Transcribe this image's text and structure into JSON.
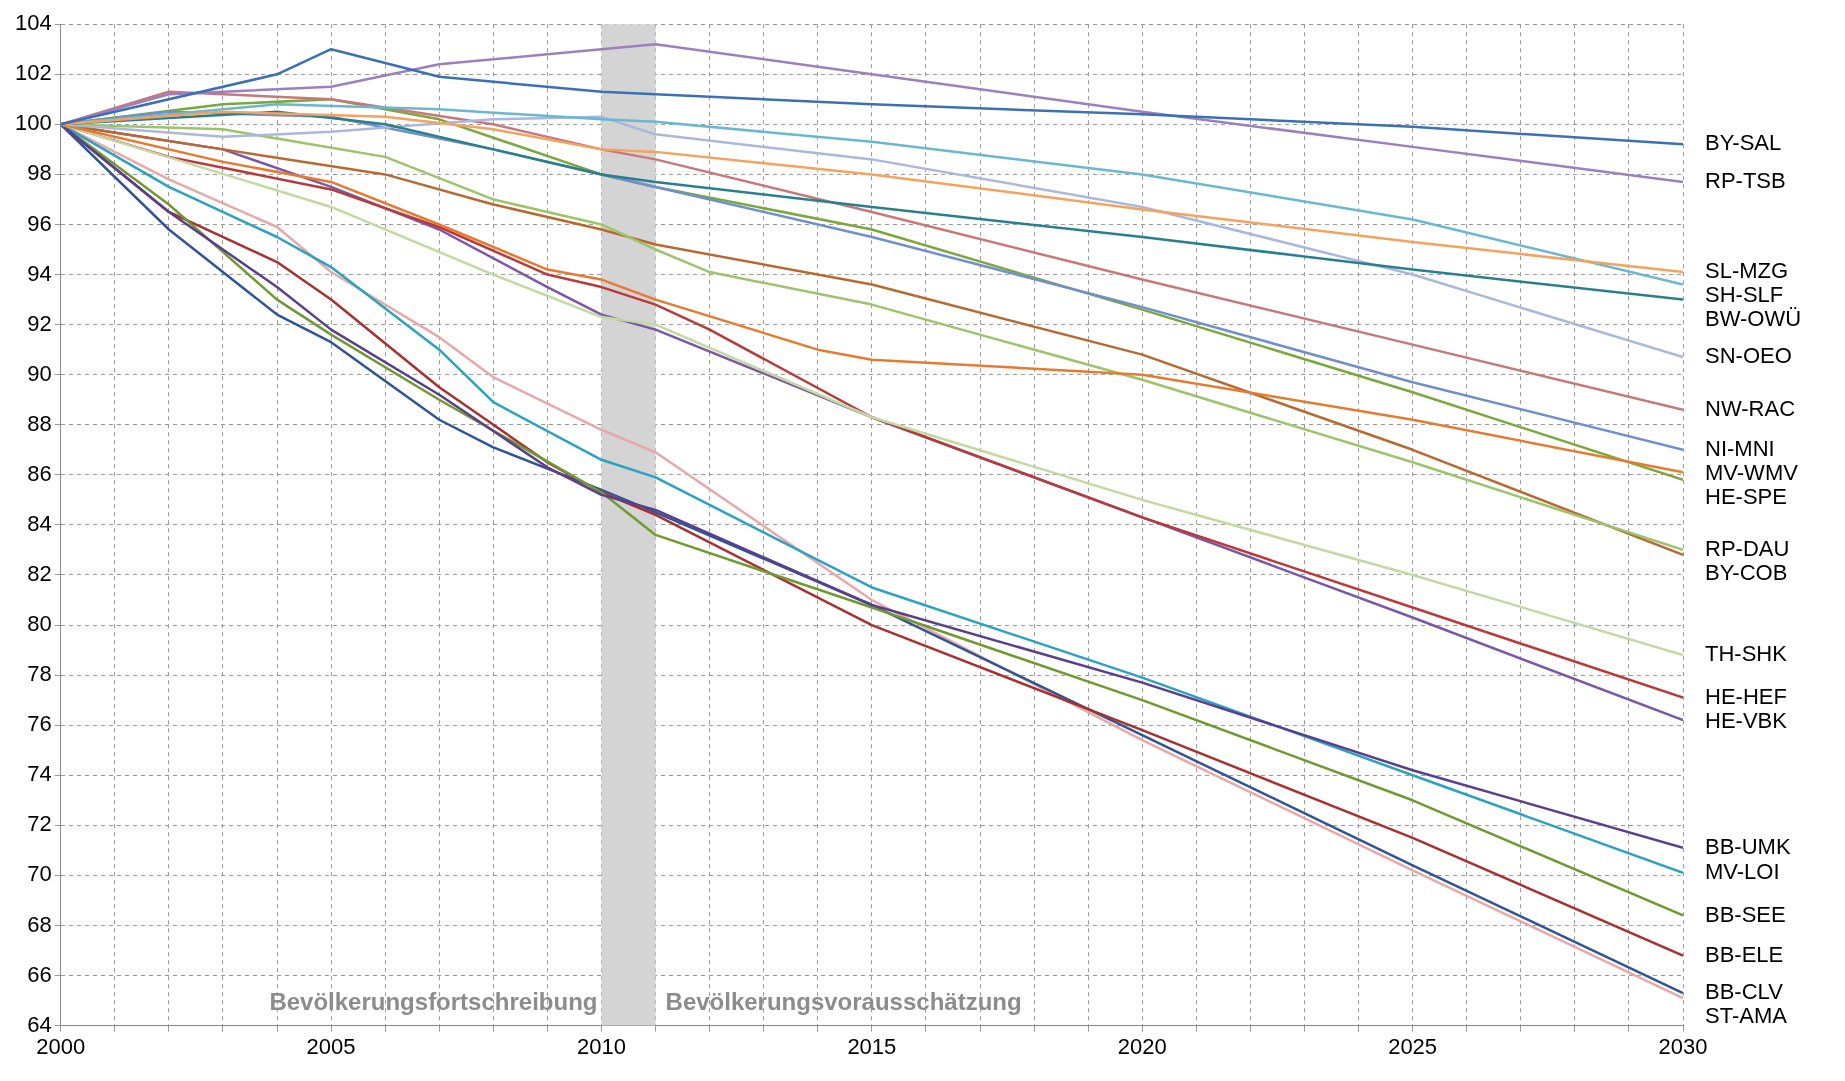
{
  "chart_data": {
    "type": "line",
    "xlim": [
      2000,
      2030
    ],
    "xticks": [
      2000,
      {
        "value": 2001,
        "label": null
      },
      {
        "value": 2002,
        "label": null
      },
      {
        "value": 2003,
        "label": null
      },
      {
        "value": 2004,
        "label": null
      },
      2005,
      {
        "value": 2006,
        "label": null
      },
      {
        "value": 2007,
        "label": null
      },
      {
        "value": 2008,
        "label": null
      },
      {
        "value": 2009,
        "label": null
      },
      2010,
      {
        "value": 2011,
        "label": null
      },
      {
        "value": 2012,
        "label": null
      },
      {
        "value": 2013,
        "label": null
      },
      {
        "value": 2014,
        "label": null
      },
      2015,
      {
        "value": 2016,
        "label": null
      },
      {
        "value": 2017,
        "label": null
      },
      {
        "value": 2018,
        "label": null
      },
      {
        "value": 2019,
        "label": null
      },
      2020,
      {
        "value": 2021,
        "label": null
      },
      {
        "value": 2022,
        "label": null
      },
      {
        "value": 2023,
        "label": null
      },
      {
        "value": 2024,
        "label": null
      },
      2025,
      {
        "value": 2026,
        "label": null
      },
      {
        "value": 2027,
        "label": null
      },
      {
        "value": 2028,
        "label": null
      },
      {
        "value": 2029,
        "label": null
      },
      2030
    ],
    "ylim": [
      64,
      104
    ],
    "yticks": [
      64,
      66,
      68,
      70,
      72,
      74,
      76,
      78,
      80,
      82,
      84,
      86,
      88,
      90,
      92,
      94,
      96,
      98,
      100,
      102,
      104
    ],
    "grid": true,
    "legend": false,
    "marker": "none",
    "line_style": "solid",
    "bands": [
      {
        "axis": "x",
        "from": 2010,
        "to": 2011,
        "color": "#d4d4d4"
      }
    ],
    "annotations": [
      "Bevölkerungsfortschreibung",
      "Bevölkerungsvorausschätzung"
    ],
    "series": [
      {
        "name": "BY-SAL",
        "color": "#3b6fb6",
        "x": [
          2000,
          2004,
          2005,
          2007,
          2010,
          2011,
          2015,
          2020,
          2025,
          2030
        ],
        "values": [
          100,
          102,
          103,
          101.9,
          101.3,
          101.2,
          100.8,
          100.4,
          99.9,
          99.2
        ]
      },
      {
        "name": "RP-TSB",
        "color": "#9b7fbf",
        "x": [
          2000,
          2002,
          2005,
          2007,
          2009,
          2011,
          2015,
          2020,
          2025,
          2030
        ],
        "values": [
          100,
          101.2,
          101.5,
          102.4,
          102.8,
          103.2,
          102,
          100.5,
          99.1,
          97.7
        ]
      },
      {
        "name": "SL-MZG",
        "color": "#f5a35c",
        "x": [
          2000,
          2003,
          2006,
          2008,
          2010,
          2011,
          2015,
          2020,
          2025,
          2030
        ],
        "values": [
          100,
          100.5,
          100.3,
          99.8,
          99,
          98.9,
          98,
          96.6,
          95.3,
          94.1
        ]
      },
      {
        "name": "SH-SLF",
        "color": "#6ab7d0",
        "x": [
          2000,
          2004,
          2007,
          2010,
          2011,
          2015,
          2020,
          2025,
          2030
        ],
        "values": [
          100,
          100.8,
          100.6,
          100.2,
          100.1,
          99.3,
          98,
          96.2,
          93.6
        ]
      },
      {
        "name": "BW-OWÜ",
        "color": "#2a7f8f",
        "x": [
          2000,
          2004,
          2006,
          2008,
          2010,
          2011,
          2015,
          2020,
          2025,
          2030
        ],
        "values": [
          100,
          100.5,
          100,
          99,
          98,
          97.7,
          96.7,
          95.5,
          94.2,
          93
        ]
      },
      {
        "name": "SN-OEO",
        "color": "#a9b8dc",
        "x": [
          2000,
          2003,
          2005,
          2008,
          2010,
          2011,
          2015,
          2020,
          2025,
          2030
        ],
        "values": [
          100,
          99.5,
          99.7,
          100.2,
          100.3,
          99.6,
          98.6,
          96.7,
          94,
          90.7
        ]
      },
      {
        "name": "NW-RAC",
        "color": "#c87878",
        "x": [
          2000,
          2002,
          2005,
          2008,
          2010,
          2011,
          2015,
          2020,
          2025,
          2030
        ],
        "values": [
          100,
          101.3,
          101,
          100,
          99,
          98.6,
          96.5,
          93.8,
          91.2,
          88.6
        ]
      },
      {
        "name": "NI-MNI",
        "color": "#6f8fcf",
        "x": [
          2000,
          2002,
          2005,
          2008,
          2010,
          2011,
          2015,
          2020,
          2025,
          2030
        ],
        "values": [
          100,
          100.5,
          100.3,
          99,
          98,
          97.5,
          95.5,
          92.7,
          89.7,
          87
        ]
      },
      {
        "name": "MV-WMV",
        "color": "#e57b2f",
        "x": [
          2000,
          2003,
          2005,
          2007,
          2009,
          2010,
          2011,
          2014,
          2015,
          2020,
          2025,
          2030
        ],
        "values": [
          100,
          98.5,
          97.7,
          96,
          94.2,
          93.8,
          93,
          91,
          90.6,
          90,
          88.2,
          86.1
        ]
      },
      {
        "name": "HE-SPE",
        "color": "#7aa83c",
        "x": [
          2000,
          2003,
          2005,
          2007,
          2010,
          2011,
          2015,
          2020,
          2025,
          2030
        ],
        "values": [
          100,
          100.8,
          101,
          100.2,
          98,
          97.5,
          95.8,
          92.6,
          89.3,
          85.8
        ]
      },
      {
        "name": "RP-DAU",
        "color": "#9cc46a",
        "x": [
          2000,
          2003,
          2006,
          2008,
          2010,
          2011,
          2012,
          2015,
          2020,
          2025,
          2030
        ],
        "values": [
          100,
          99.8,
          98.7,
          97,
          96,
          95,
          94.1,
          92.8,
          89.8,
          86.5,
          83
        ]
      },
      {
        "name": "BY-COB",
        "color": "#b8692f",
        "x": [
          2000,
          2003,
          2006,
          2008,
          2010,
          2011,
          2015,
          2020,
          2025,
          2030
        ],
        "values": [
          100,
          99,
          98,
          96.8,
          95.8,
          95.2,
          93.6,
          90.8,
          87,
          82.8
        ]
      },
      {
        "name": "TH-SHK",
        "color": "#c4d9a0",
        "x": [
          2000,
          2005,
          2008,
          2010,
          2011,
          2015,
          2020,
          2025,
          2030
        ],
        "values": [
          100,
          96.7,
          94,
          92.3,
          92,
          88.3,
          85,
          82,
          78.8
        ]
      },
      {
        "name": "HE-HEF",
        "color": "#b83a3a",
        "x": [
          2000,
          2002,
          2005,
          2007,
          2009,
          2010,
          2011,
          2012,
          2015,
          2020,
          2025,
          2030
        ],
        "values": [
          100,
          98.7,
          97.4,
          95.9,
          94,
          93.5,
          92.8,
          91.8,
          88.3,
          84.3,
          80.7,
          77.1
        ]
      },
      {
        "name": "HE-VBK",
        "color": "#7a58a8",
        "x": [
          2000,
          2003,
          2005,
          2007,
          2009,
          2010,
          2011,
          2015,
          2020,
          2025,
          2030
        ],
        "values": [
          100,
          99,
          97.5,
          95.8,
          93.5,
          92.4,
          91.8,
          88.3,
          84.3,
          80.3,
          76.2
        ]
      },
      {
        "name": "BB-UMK",
        "color": "#5a3f8f",
        "x": [
          2000,
          2002,
          2004,
          2005,
          2007,
          2009,
          2010,
          2011,
          2015,
          2020,
          2025,
          2030
        ],
        "values": [
          100,
          96.5,
          93.5,
          91.8,
          89.2,
          86.3,
          85.2,
          84.6,
          80.8,
          77.7,
          74.2,
          71.1
        ]
      },
      {
        "name": "MV-LOI",
        "color": "#2aa2c0",
        "x": [
          2000,
          2002,
          2004,
          2005,
          2007,
          2008,
          2010,
          2011,
          2015,
          2020,
          2025,
          2030
        ],
        "values": [
          100,
          97.5,
          95.5,
          94.3,
          91,
          88.9,
          86.6,
          85.9,
          81.5,
          77.9,
          74,
          70.1
        ]
      },
      {
        "name": "BB-SEE",
        "color": "#6f9a30",
        "x": [
          2000,
          2002,
          2004,
          2005,
          2007,
          2010,
          2011,
          2015,
          2020,
          2025,
          2030
        ],
        "values": [
          100,
          96.8,
          93,
          91.6,
          89,
          85.3,
          83.6,
          80.7,
          77,
          73,
          68.4
        ]
      },
      {
        "name": "BB-ELE",
        "color": "#a8302f",
        "x": [
          2000,
          2002,
          2004,
          2005,
          2007,
          2009,
          2010,
          2011,
          2015,
          2020,
          2025,
          2030
        ],
        "values": [
          100,
          96.5,
          94.5,
          93,
          89.5,
          86.5,
          85.3,
          84.4,
          80,
          75.8,
          71.5,
          66.8
        ]
      },
      {
        "name": "BB-CLV",
        "color": "#2f5597",
        "x": [
          2000,
          2002,
          2004,
          2005,
          2007,
          2008,
          2010,
          2011,
          2015,
          2020,
          2025,
          2030
        ],
        "values": [
          100,
          95.8,
          92.4,
          91.3,
          88.2,
          87.1,
          85.4,
          84.5,
          80.8,
          75.6,
          70.4,
          65.3
        ]
      },
      {
        "name": "ST-AMA",
        "color": "#e8a8a8",
        "x": [
          2000,
          2002,
          2004,
          2005,
          2007,
          2008,
          2010,
          2011,
          2015,
          2020,
          2025,
          2030
        ],
        "values": [
          100,
          97.8,
          95.9,
          94.1,
          91.5,
          89.9,
          87.8,
          86.9,
          81,
          75.4,
          70.2,
          65.1
        ]
      }
    ]
  }
}
